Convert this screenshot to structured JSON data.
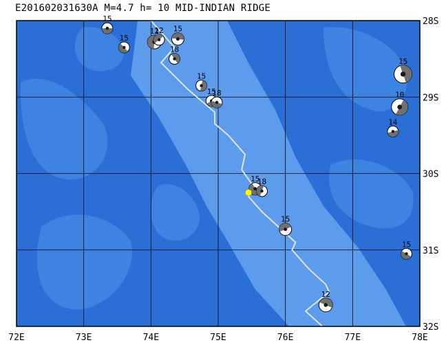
{
  "title": "E201602031630A M=4.7 h= 10 MID-INDIAN RIDGE",
  "event_marker": {
    "lon": 75.45,
    "lat": -30.25,
    "color": "#ffff00"
  },
  "map_extent": {
    "lon_min": 72,
    "lon_max": 78,
    "lat_min": -32,
    "lat_max": -28
  },
  "x_ticks": [
    {
      "lon": 72,
      "label": "72E"
    },
    {
      "lon": 73,
      "label": "73E"
    },
    {
      "lon": 74,
      "label": "74E"
    },
    {
      "lon": 75,
      "label": "75E"
    },
    {
      "lon": 76,
      "label": "76E"
    },
    {
      "lon": 77,
      "label": "77E"
    },
    {
      "lon": 78,
      "label": "78E"
    }
  ],
  "y_ticks": [
    {
      "lat": -28,
      "label": "28S"
    },
    {
      "lat": -29,
      "label": "29S"
    },
    {
      "lat": -30,
      "label": "30S"
    },
    {
      "lat": -31,
      "label": "31S"
    },
    {
      "lat": -32,
      "label": "32S"
    }
  ],
  "colors": {
    "ocean": "#2a6fd6",
    "shallow": "#3d84e2",
    "ridge": "#5d9cec",
    "grid": "#000000",
    "plate_boundary": "#dde6f2"
  },
  "plate_boundary": [
    [
      74.0,
      -28.0
    ],
    [
      74.35,
      -28.35
    ],
    [
      74.15,
      -28.55
    ],
    [
      74.55,
      -28.9
    ],
    [
      74.95,
      -29.2
    ],
    [
      74.95,
      -29.35
    ],
    [
      75.15,
      -29.5
    ],
    [
      75.4,
      -29.75
    ],
    [
      75.35,
      -29.95
    ],
    [
      75.55,
      -30.2
    ],
    [
      75.45,
      -30.3
    ],
    [
      75.65,
      -30.5
    ],
    [
      75.9,
      -30.7
    ],
    [
      76.15,
      -30.9
    ],
    [
      76.1,
      -31.0
    ],
    [
      76.35,
      -31.25
    ],
    [
      76.6,
      -31.45
    ],
    [
      76.65,
      -31.55
    ],
    [
      76.3,
      -31.8
    ],
    [
      76.55,
      -32.0
    ]
  ],
  "mechanisms": [
    {
      "lon": 73.35,
      "lat": -28.1,
      "depth": "15",
      "size": 8
    },
    {
      "lon": 73.6,
      "lat": -28.35,
      "depth": "15",
      "size": 8
    },
    {
      "lon": 74.05,
      "lat": -28.28,
      "depth": "12",
      "size": 10
    },
    {
      "lon": 74.12,
      "lat": -28.25,
      "depth": "12",
      "size": 8
    },
    {
      "lon": 74.4,
      "lat": -28.24,
      "depth": "15",
      "size": 9
    },
    {
      "lon": 74.35,
      "lat": -28.5,
      "depth": "18",
      "size": 8
    },
    {
      "lon": 74.75,
      "lat": -28.85,
      "depth": "15",
      "size": 8
    },
    {
      "lon": 74.9,
      "lat": -29.05,
      "depth": "15",
      "size": 8
    },
    {
      "lon": 74.98,
      "lat": -29.07,
      "depth": "18",
      "size": 8
    },
    {
      "lon": 75.55,
      "lat": -30.2,
      "depth": "15",
      "size": 9
    },
    {
      "lon": 75.65,
      "lat": -30.23,
      "depth": "18",
      "size": 8
    },
    {
      "lon": 76.0,
      "lat": -30.73,
      "depth": "15",
      "size": 9
    },
    {
      "lon": 76.6,
      "lat": -31.72,
      "depth": "12",
      "size": 10
    },
    {
      "lon": 77.75,
      "lat": -28.7,
      "depth": "15",
      "size": 13
    },
    {
      "lon": 77.7,
      "lat": -29.13,
      "depth": "10",
      "size": 12
    },
    {
      "lon": 77.6,
      "lat": -29.45,
      "depth": "14",
      "size": 8
    },
    {
      "lon": 77.8,
      "lat": -31.05,
      "depth": "15",
      "size": 8
    }
  ]
}
